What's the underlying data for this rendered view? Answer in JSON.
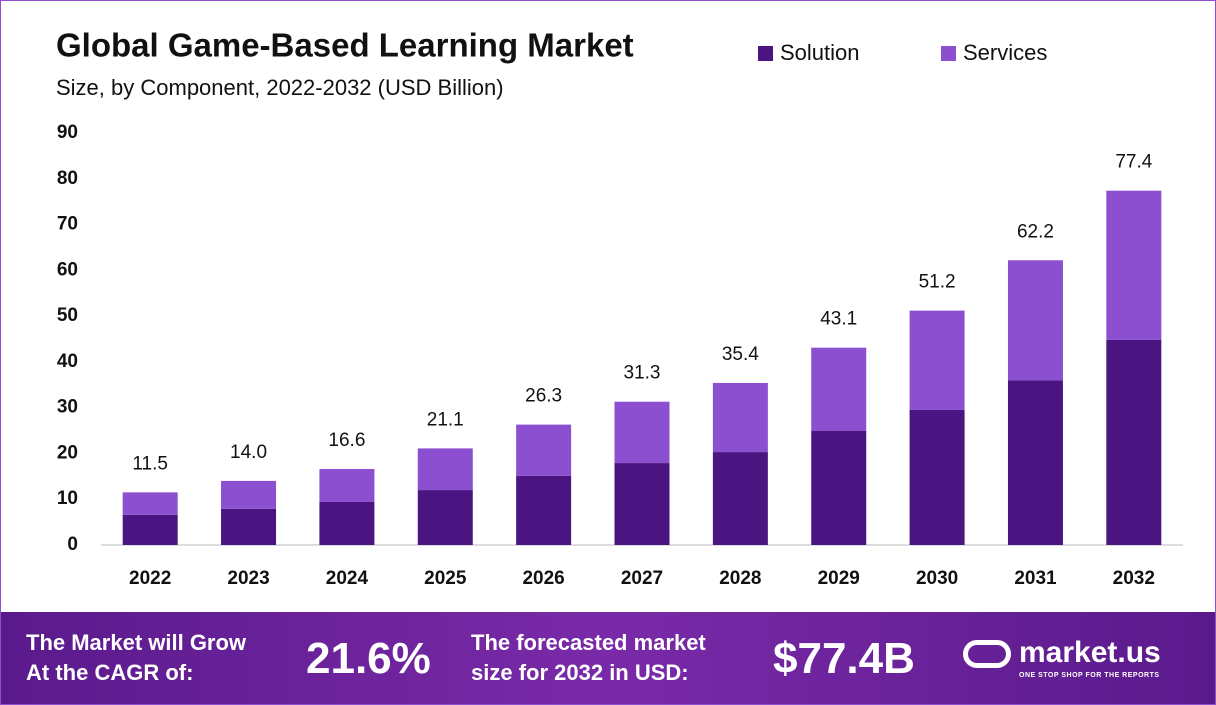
{
  "chart_data": {
    "type": "stacked-bar",
    "title": "Global Game-Based Learning Market",
    "subtitle": "Size, by Component, 2022-2032 (USD Billion)",
    "categories": [
      "2022",
      "2023",
      "2024",
      "2025",
      "2026",
      "2027",
      "2028",
      "2029",
      "2030",
      "2031",
      "2032"
    ],
    "series": [
      {
        "name": "Solution",
        "color": "#4a1580",
        "values": [
          6.6,
          7.9,
          9.4,
          12.0,
          15.1,
          17.9,
          20.3,
          24.9,
          29.5,
          36.0,
          44.8
        ]
      },
      {
        "name": "Services",
        "color": "#8b4fd0",
        "values": [
          4.9,
          6.1,
          7.2,
          9.1,
          11.2,
          13.4,
          15.1,
          18.2,
          21.7,
          26.2,
          32.6
        ]
      }
    ],
    "totals": {
      "values": [
        11.5,
        14.0,
        16.6,
        21.1,
        26.3,
        31.3,
        35.4,
        43.1,
        51.2,
        62.2,
        77.4
      ],
      "value_labels": [
        "11.5",
        "14.0",
        "16.6",
        "21.1",
        "26.3",
        "31.3",
        "35.4",
        "43.1",
        "51.2",
        "62.2",
        "77.4"
      ]
    },
    "ylim": [
      0,
      90
    ],
    "yticks": [
      0,
      10,
      20,
      30,
      40,
      50,
      60,
      70,
      80,
      90
    ],
    "grid": false,
    "legend": "top"
  },
  "footer": {
    "cagr_label": [
      "The Market will Grow",
      "At the CAGR of:"
    ],
    "cagr": "21.6%",
    "forecast_label": [
      "The forecasted market",
      "size for 2032 in USD:"
    ],
    "forecast": "$77.4B",
    "brand": "market.us",
    "tagline": "ONE STOP SHOP FOR THE REPORTS"
  }
}
